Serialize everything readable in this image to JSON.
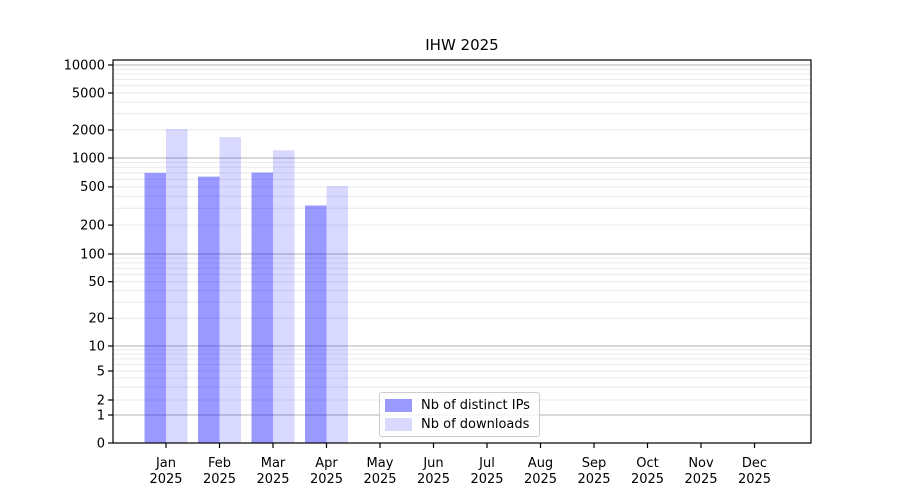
{
  "chart_data": {
    "type": "bar",
    "title": "IHW 2025",
    "categories": [
      "Jan",
      "Feb",
      "Mar",
      "Apr",
      "May",
      "Jun",
      "Jul",
      "Aug",
      "Sep",
      "Oct",
      "Nov",
      "Dec"
    ],
    "x_sublabel": "2025",
    "series": [
      {
        "name": "Nb of distinct IPs",
        "color": "rgba(0,0,255,0.4)",
        "values": [
          700,
          640,
          705,
          320,
          0,
          0,
          0,
          0,
          0,
          0,
          0,
          0
        ]
      },
      {
        "name": "Nb of downloads",
        "color": "rgba(0,0,255,0.15)",
        "values": [
          2050,
          1680,
          1210,
          510,
          0,
          0,
          0,
          0,
          0,
          0,
          0,
          0
        ]
      }
    ],
    "y_ticks": [
      0,
      1,
      2,
      5,
      10,
      20,
      50,
      100,
      200,
      500,
      1000,
      2000,
      5000,
      10000
    ],
    "yscale": "symlog",
    "ylim": [
      0,
      11500
    ],
    "grid": {
      "orientation": "horizontal",
      "major_lines": [
        1,
        10,
        100,
        1000,
        10000
      ],
      "major_color": "#b3b3b3",
      "minor_color": "#e9e9ee"
    },
    "legend": {
      "position": "lower-center-left"
    }
  },
  "colors": {
    "background": "#ffffff",
    "text": "#000000",
    "axis": "#000000"
  }
}
